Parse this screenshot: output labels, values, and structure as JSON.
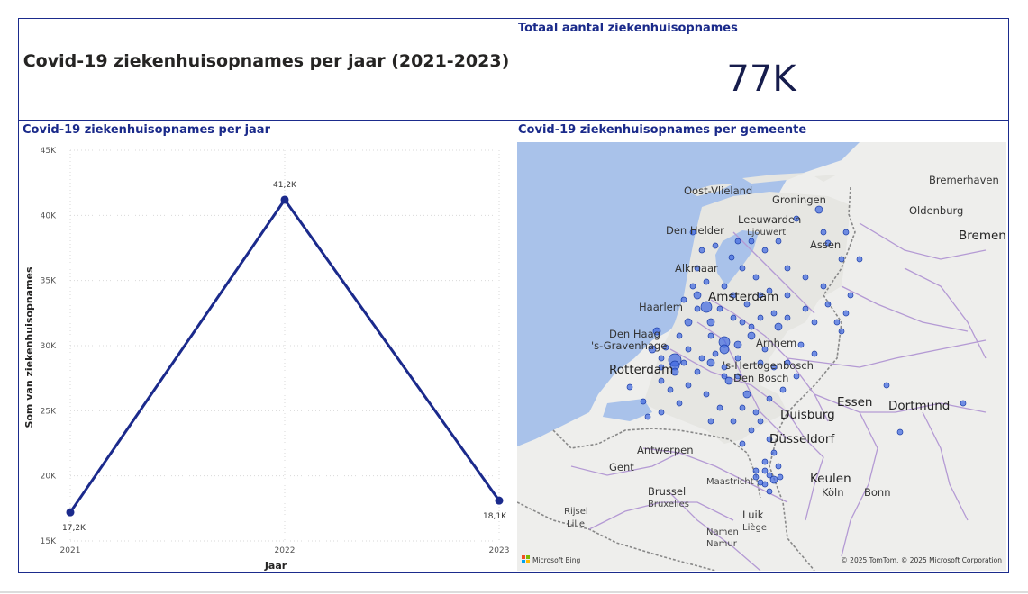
{
  "report": {
    "title": "Covid-19 ziekenhuisopnames per jaar (2021-2023)"
  },
  "kpi": {
    "label": "Totaal aantal ziekenhuisopnames",
    "value": "77K"
  },
  "line_panel": {
    "heading": "Covid-19 ziekenhuisopnames per jaar"
  },
  "map_panel": {
    "heading": "Covid-19 ziekenhuisopnames per gemeente",
    "attribution": "© 2025 TomTom, © 2025 Microsoft Corporation",
    "logo_text": "Microsoft Bing",
    "places": [
      {
        "name": "Oost-Vlieland"
      },
      {
        "name": "Groningen"
      },
      {
        "name": "Bremerhaven"
      },
      {
        "name": "Leeuwarden"
      },
      {
        "name": "Ljouwert"
      },
      {
        "name": "Oldenburg"
      },
      {
        "name": "Den Helder"
      },
      {
        "name": "Bremen"
      },
      {
        "name": "Assen"
      },
      {
        "name": "Alkmaar"
      },
      {
        "name": "Amsterdam"
      },
      {
        "name": "Haarlem"
      },
      {
        "name": "Den Haag"
      },
      {
        "name": "'s-Gravenhage"
      },
      {
        "name": "Arnhem"
      },
      {
        "name": "Rotterdam"
      },
      {
        "name": "'s-Hertogenbosch"
      },
      {
        "name": "Den Bosch"
      },
      {
        "name": "Essen"
      },
      {
        "name": "Dortmund"
      },
      {
        "name": "Duisburg"
      },
      {
        "name": "Antwerpen"
      },
      {
        "name": "Düsseldorf"
      },
      {
        "name": "Gent"
      },
      {
        "name": "Keulen"
      },
      {
        "name": "Maastricht"
      },
      {
        "name": "Köln"
      },
      {
        "name": "Brussel"
      },
      {
        "name": "Bonn"
      },
      {
        "name": "Bruxelles"
      },
      {
        "name": "Rijsel"
      },
      {
        "name": "Luik"
      },
      {
        "name": "Lille"
      },
      {
        "name": "Liège"
      },
      {
        "name": "Namen"
      },
      {
        "name": "Namur"
      }
    ]
  },
  "chart_data": {
    "type": "line",
    "title": "Covid-19 ziekenhuisopnames per jaar",
    "xlabel": "Jaar",
    "ylabel": "Som van ziekenhuisopnames",
    "categories": [
      "2021",
      "2022",
      "2023"
    ],
    "values": [
      17200,
      41200,
      18100
    ],
    "data_labels": [
      "17,2K",
      "41,2K",
      "18,1K"
    ],
    "ylim": [
      15000,
      45000
    ],
    "yticks": [
      "15K",
      "20K",
      "25K",
      "30K",
      "35K",
      "40K",
      "45K"
    ],
    "grid": true,
    "colors": {
      "line": "#1b2a8c"
    }
  }
}
